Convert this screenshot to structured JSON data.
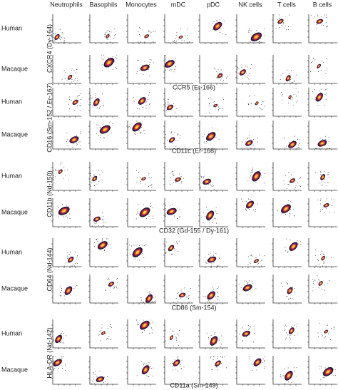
{
  "columns": [
    "Neutrophils",
    "Basophils",
    "Monocytes",
    "mDC",
    "pDC",
    "NK cells",
    "T cells",
    "B cells"
  ],
  "groups": [
    {
      "y_marker": "CXCR4 (Dy-164)",
      "x_marker": "CCR5 (Er-166)",
      "rows": [
        "Human",
        "Macaque"
      ]
    },
    {
      "y_marker": "CD16 (Sm-152 / Er-167)",
      "x_marker": "CD11c (Er-168)",
      "rows": [
        "Human",
        "Macaque"
      ]
    },
    {
      "y_marker": "CD11b (Nd-150)",
      "x_marker": "CD32 (Gd-155 / Dy-161)",
      "rows": [
        "Human",
        "Macaque"
      ]
    },
    {
      "y_marker": "CD64 (Nd-144)",
      "x_marker": "CD86 (Sm-154)",
      "rows": [
        "Human",
        "Macaque"
      ]
    },
    {
      "y_marker": "HLA-DR (Nd-142)",
      "x_marker": "CD11a (Sm-149)",
      "rows": [
        "Human",
        "Macaque"
      ]
    }
  ]
}
